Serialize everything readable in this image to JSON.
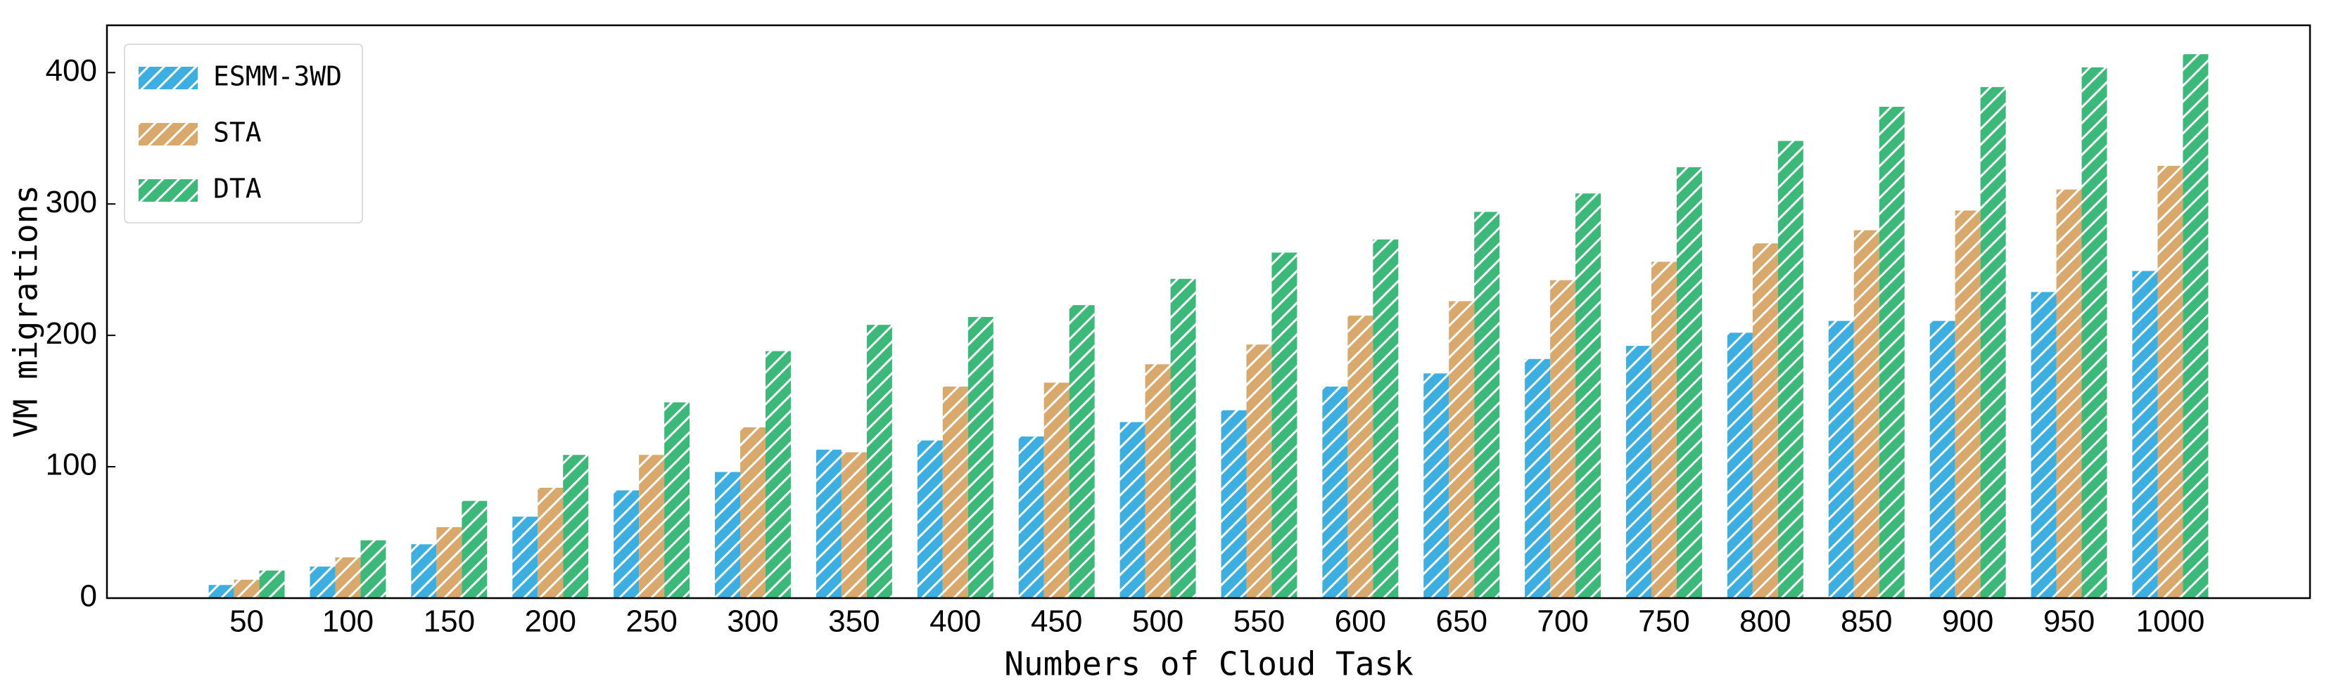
{
  "chart_data": {
    "type": "bar",
    "x_label": "Numbers of Cloud Task",
    "y_label": "VM migrations",
    "categories": [
      "50",
      "100",
      "150",
      "200",
      "250",
      "300",
      "350",
      "400",
      "450",
      "500",
      "550",
      "600",
      "650",
      "700",
      "750",
      "800",
      "850",
      "900",
      "950",
      "1000"
    ],
    "series": [
      {
        "name": "ESMM-3WD",
        "color": "#3daee0",
        "values": [
          10,
          24,
          41,
          62,
          82,
          96,
          113,
          120,
          123,
          134,
          143,
          161,
          171,
          182,
          192,
          202,
          211,
          211,
          233,
          249
        ]
      },
      {
        "name": "STA",
        "color": "#d9a86c",
        "values": [
          14,
          31,
          54,
          84,
          109,
          130,
          111,
          161,
          164,
          178,
          193,
          215,
          226,
          242,
          256,
          270,
          280,
          295,
          311,
          329
        ]
      },
      {
        "name": "DTA",
        "color": "#3cb878",
        "values": [
          21,
          44,
          74,
          109,
          149,
          188,
          208,
          214,
          223,
          243,
          263,
          273,
          294,
          308,
          328,
          348,
          374,
          389,
          404,
          414
        ]
      }
    ],
    "ylim": [
      0,
      436
    ],
    "yticks": [
      0,
      100,
      200,
      300,
      400
    ],
    "hatch": true,
    "legend": "upper left"
  }
}
